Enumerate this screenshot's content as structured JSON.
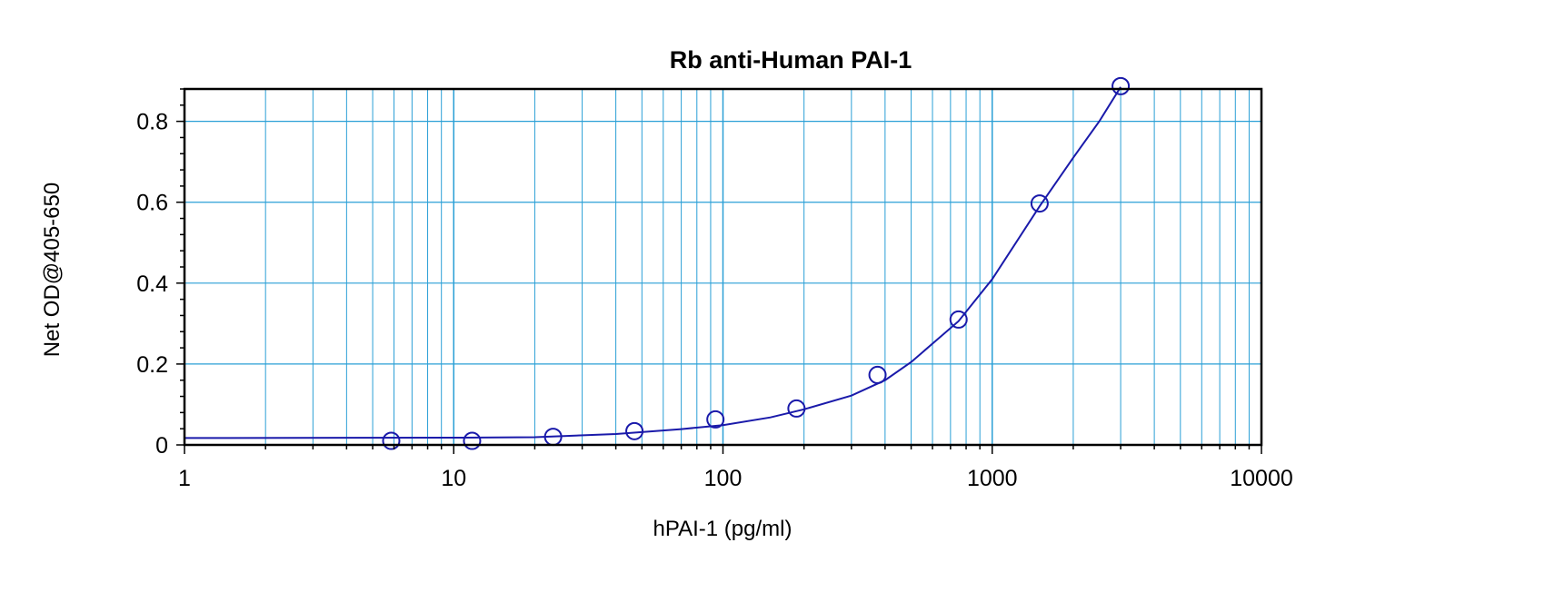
{
  "chart_data": {
    "type": "scatter",
    "title": "Rb anti-Human PAI-1",
    "xlabel": "hPAI-1 (pg/ml)",
    "ylabel": "Net OD@405-650",
    "x_scale": "log",
    "xlim": [
      1,
      10000
    ],
    "ylim": [
      0,
      0.88
    ],
    "x_ticks": [
      1,
      10,
      100,
      1000,
      10000
    ],
    "x_tick_labels": [
      "1",
      "10",
      "100",
      "1000",
      "10000"
    ],
    "y_ticks": [
      0,
      0.2,
      0.4,
      0.6,
      0.8
    ],
    "y_tick_labels": [
      "0",
      "0.2",
      "0.4",
      "0.6",
      "0.8"
    ],
    "grid": true,
    "series": [
      {
        "marker": "open-circle",
        "x": [
          5.86,
          11.7,
          23.4,
          46.9,
          93.75,
          187.5,
          375,
          750,
          1500,
          3000
        ],
        "y": [
          0.01,
          0.01,
          0.02,
          0.034,
          0.063,
          0.09,
          0.173,
          0.31,
          0.597,
          0.887
        ]
      }
    ],
    "fit_curve": {
      "x": [
        1,
        10,
        20,
        40,
        70,
        100,
        150,
        200,
        300,
        400,
        500,
        750,
        1000,
        1500,
        2000,
        2500,
        3000
      ],
      "y": [
        0.017,
        0.018,
        0.019,
        0.027,
        0.039,
        0.049,
        0.068,
        0.088,
        0.122,
        0.16,
        0.205,
        0.306,
        0.41,
        0.59,
        0.71,
        0.8,
        0.885
      ]
    },
    "colors": {
      "series": "#1a1aaa",
      "grid": "#2a9fd6",
      "axis": "#000000"
    }
  }
}
